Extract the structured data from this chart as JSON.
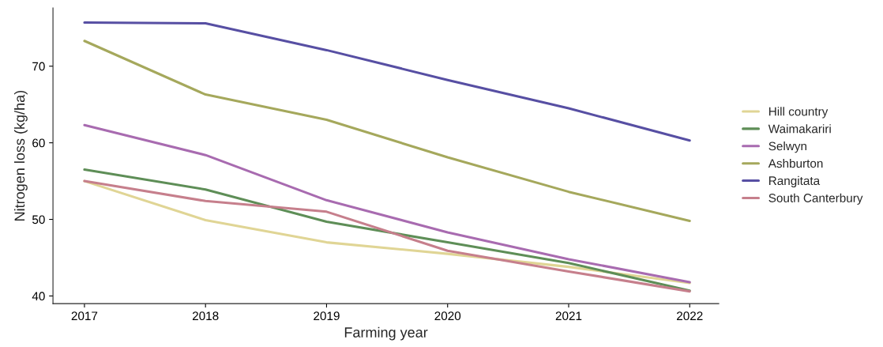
{
  "chart_data": {
    "type": "line",
    "xlabel": "Farming year",
    "ylabel": "Nitrogen loss (kg/ha)",
    "x": [
      2017,
      2018,
      2019,
      2020,
      2021,
      2022
    ],
    "xlim": [
      2016.74,
      2022.24
    ],
    "xticks": [
      2017,
      2018,
      2019,
      2020,
      2021,
      2022
    ],
    "ylim": [
      39.0,
      77.6
    ],
    "yticks": [
      40,
      50,
      60,
      70
    ],
    "grid": false,
    "legend": "right",
    "line_style": "solid",
    "series": [
      {
        "name": "Hill country",
        "color": "#e0d595",
        "values": [
          55.0,
          49.9,
          47.0,
          45.5,
          43.8,
          41.7
        ]
      },
      {
        "name": "Waimakariri",
        "color": "#5e8e57",
        "values": [
          56.5,
          53.9,
          49.7,
          47.0,
          44.3,
          40.7
        ]
      },
      {
        "name": "Selwyn",
        "color": "#a86bb0",
        "values": [
          62.3,
          58.4,
          52.5,
          48.3,
          44.8,
          41.8
        ]
      },
      {
        "name": "Ashburton",
        "color": "#a5a85c",
        "values": [
          73.3,
          66.3,
          63.0,
          58.1,
          53.6,
          49.8
        ]
      },
      {
        "name": "Rangitata",
        "color": "#574fa3",
        "values": [
          75.7,
          75.6,
          72.1,
          68.2,
          64.5,
          60.3
        ]
      },
      {
        "name": "South Canterbury",
        "color": "#c67f8c",
        "values": [
          55.0,
          52.4,
          51.0,
          45.9,
          43.2,
          40.6
        ]
      }
    ]
  }
}
